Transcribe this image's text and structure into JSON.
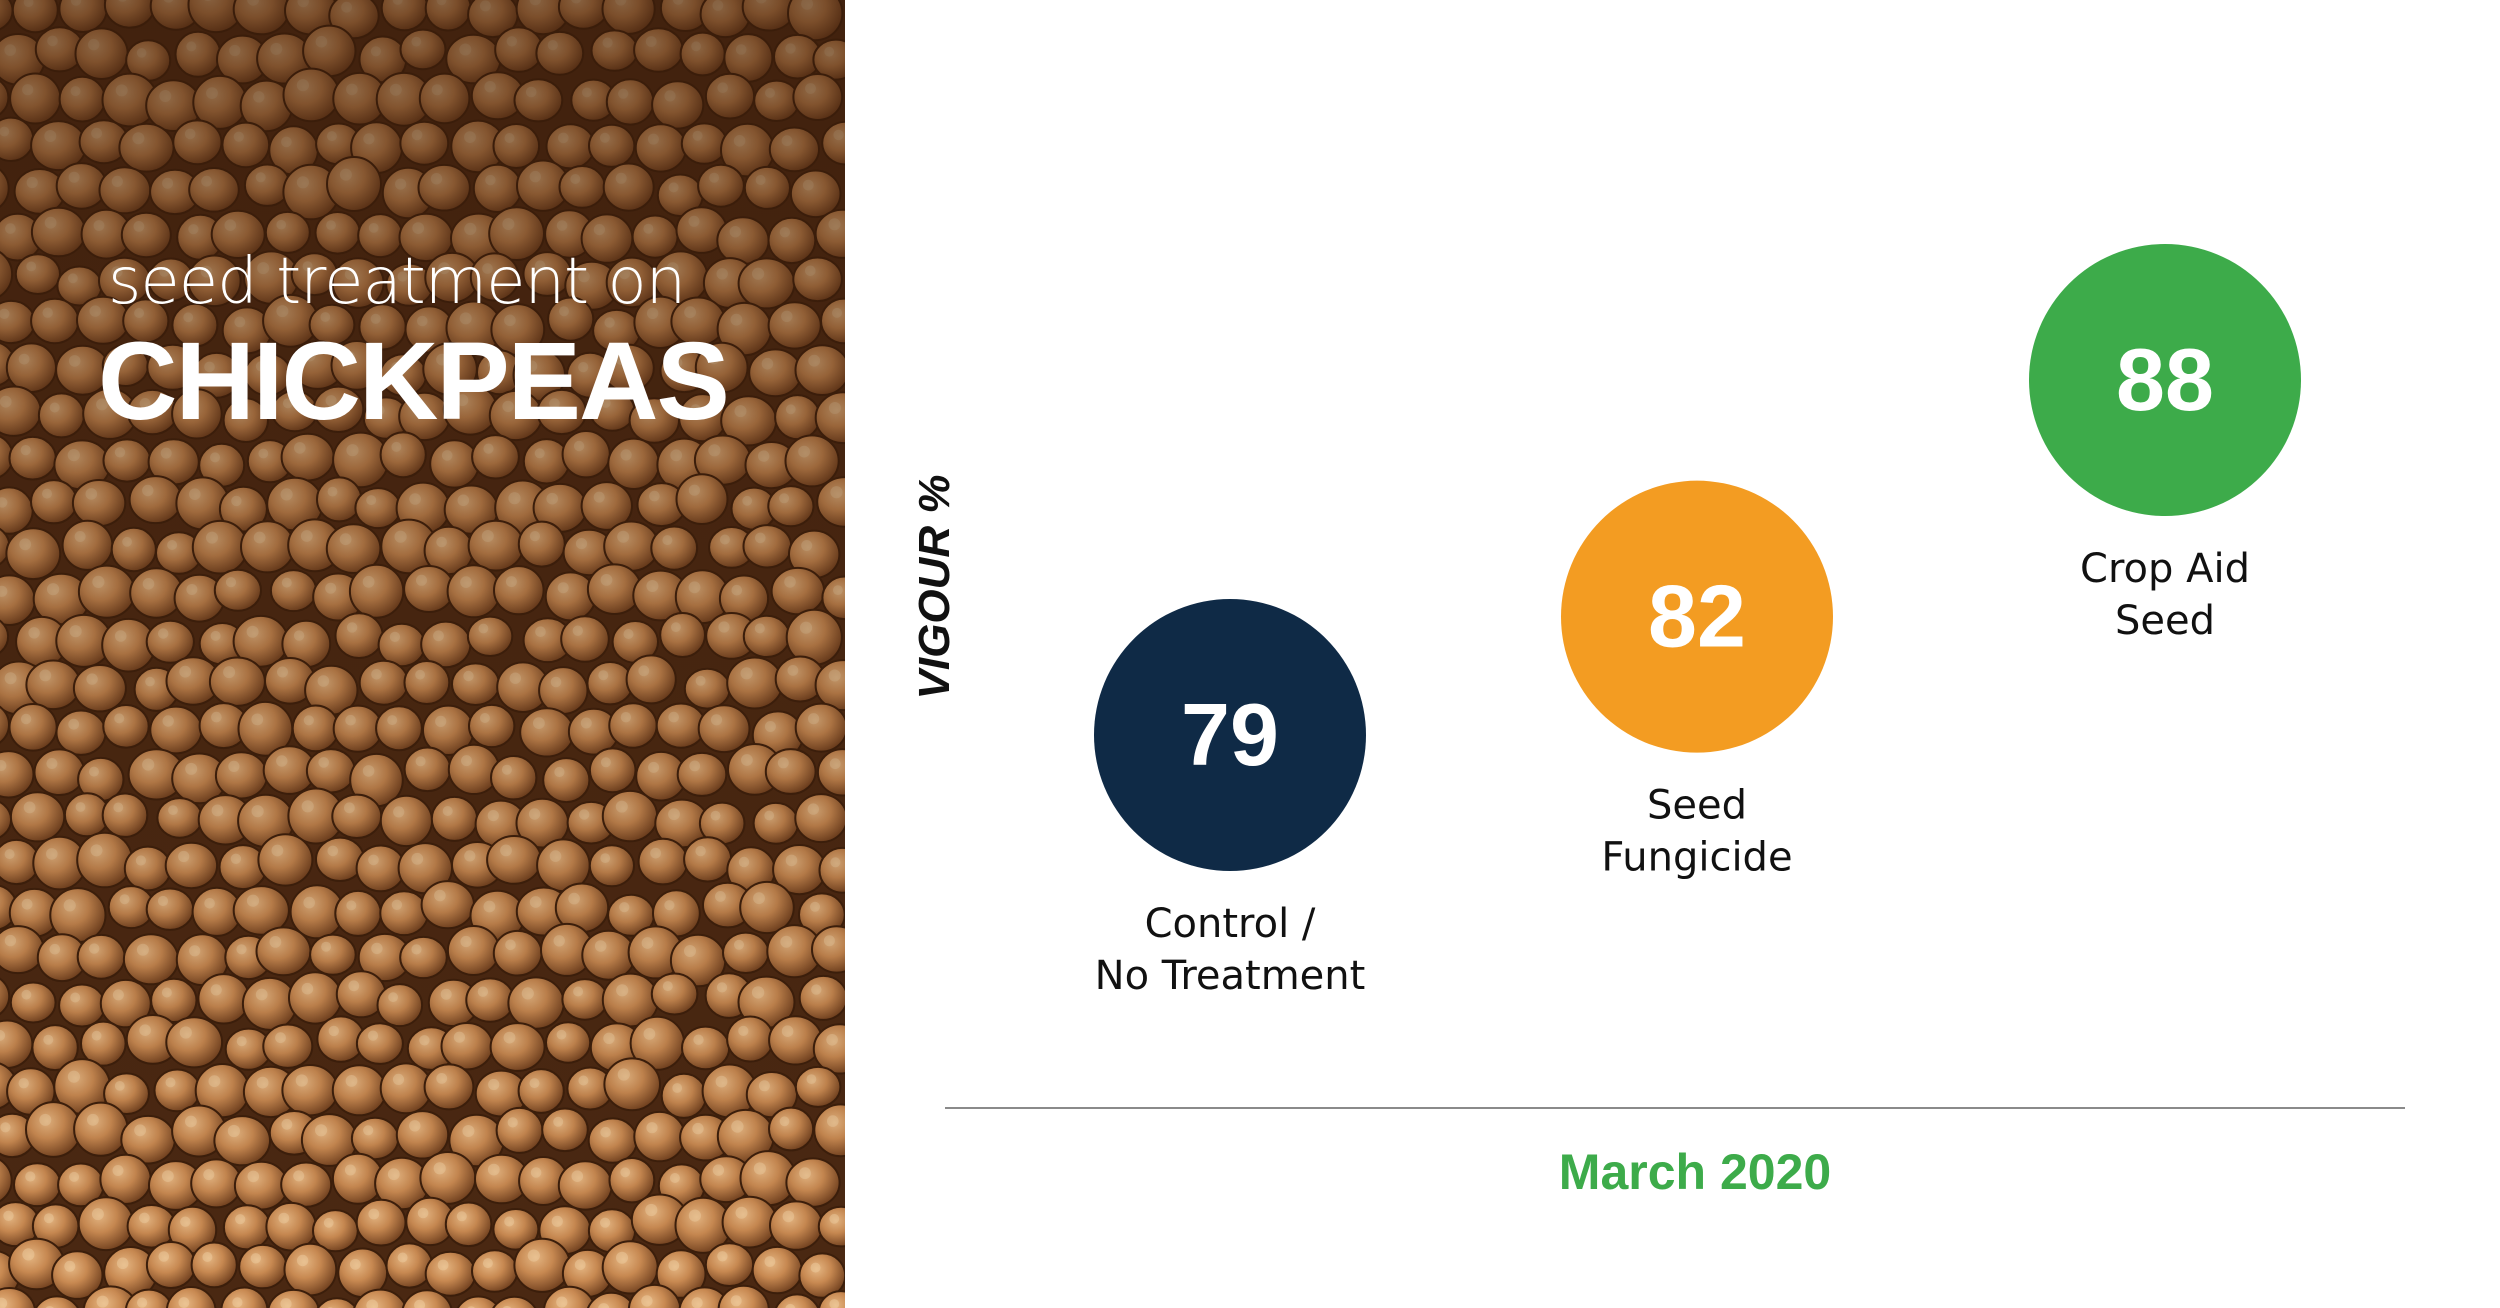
{
  "header": {
    "subtitle": "seed treatment on",
    "title": "CHICKPEAS"
  },
  "colors": {
    "control": "#0f2a46",
    "fungicide": "#f39c22",
    "crop_aid": "#3dab4a",
    "xlabel": "#3dab4a",
    "axis_line": "#8a8a8a"
  },
  "chart_data": {
    "type": "scatter",
    "title": "",
    "ylabel": "VIGOUR %",
    "xlabel": "March 2020",
    "ylim": [
      70,
      95
    ],
    "grid": false,
    "legend": "none",
    "categories": [
      [
        "Control /",
        "No Treatment"
      ],
      [
        "Seed",
        "Fungicide"
      ],
      [
        "Crop Aid",
        "Seed"
      ]
    ],
    "values": [
      79,
      82,
      88
    ],
    "point_colors": [
      "#0f2a46",
      "#f39c22",
      "#3dab4a"
    ]
  }
}
